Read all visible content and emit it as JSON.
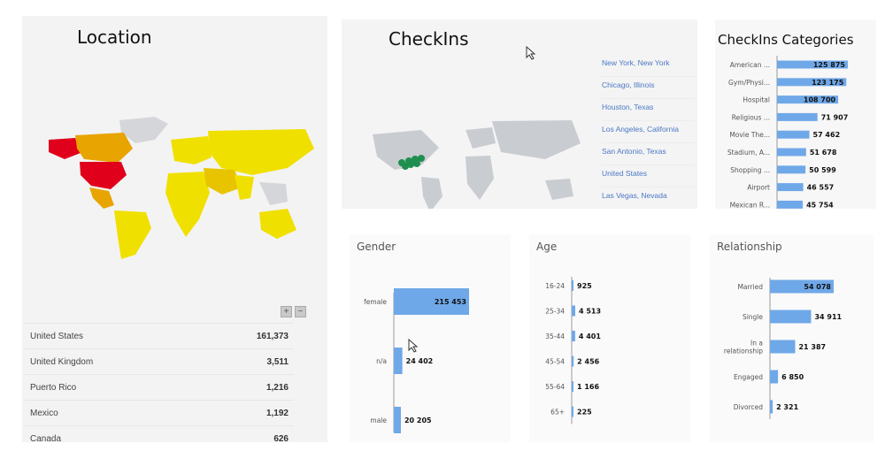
{
  "location": {
    "title": "Location",
    "zoom_in": "+",
    "zoom_out": "−",
    "rows": [
      {
        "country": "United States",
        "value": "161,373"
      },
      {
        "country": "United Kingdom",
        "value": "3,511"
      },
      {
        "country": "Puerto Rico",
        "value": "1,216"
      },
      {
        "country": "Mexico",
        "value": "1,192"
      },
      {
        "country": "Canada",
        "value": "626"
      }
    ],
    "colors": {
      "high": "#e0001b",
      "mid": "#e8a400",
      "low": "#f0e000",
      "none": "#d4d6da"
    }
  },
  "checkins": {
    "title": "CheckIns",
    "cities": [
      "New York, New York",
      "Chicago, Illinois",
      "Houston, Texas",
      "Los Angeles, California",
      "San Antonio, Texas",
      "United States",
      "Las Vegas, Nevada"
    ],
    "marker_color": "#1f8f4f"
  },
  "categories": {
    "title": "CheckIns Categories"
  },
  "gender": {
    "title": "Gender"
  },
  "age": {
    "title": "Age"
  },
  "relationship": {
    "title": "Relationship"
  },
  "chart_data": [
    {
      "type": "bar",
      "orientation": "horizontal",
      "title": "CheckIns Categories",
      "categories": [
        "American ...",
        "Gym/Physi...",
        "Hospital",
        "Religious ...",
        "Movie The...",
        "Stadium, A...",
        "Shopping ...",
        "Airport",
        "Mexican R..."
      ],
      "values": [
        125875,
        123175,
        108700,
        71907,
        57462,
        51678,
        50599,
        46557,
        45754
      ],
      "value_labels": [
        "125 875",
        "123 175",
        "108 700",
        "71 907",
        "57 462",
        "51 678",
        "50 599",
        "46 557",
        "45 754"
      ],
      "color": "#6fa8e8"
    },
    {
      "type": "bar",
      "orientation": "horizontal",
      "title": "Gender",
      "categories": [
        "female",
        "n/a",
        "male"
      ],
      "values": [
        215453,
        24402,
        20205
      ],
      "value_labels": [
        "215 453",
        "24 402",
        "20 205"
      ],
      "color": "#6fa8e8"
    },
    {
      "type": "bar",
      "orientation": "horizontal",
      "title": "Age",
      "categories": [
        "16-24",
        "25-34",
        "35-44",
        "45-54",
        "55-64",
        "65+"
      ],
      "values": [
        925,
        4513,
        4401,
        2456,
        1166,
        225
      ],
      "value_labels": [
        "925",
        "4 513",
        "4 401",
        "2 456",
        "1 166",
        "225"
      ],
      "color": "#6fa8e8"
    },
    {
      "type": "bar",
      "orientation": "horizontal",
      "title": "Relationship",
      "categories": [
        "Married",
        "Single",
        "In a relationship",
        "Engaged",
        "Divorced"
      ],
      "values": [
        54078,
        34911,
        21387,
        6850,
        2321
      ],
      "value_labels": [
        "54 078",
        "34 911",
        "21 387",
        "6 850",
        "2 321"
      ],
      "color": "#6fa8e8"
    }
  ]
}
